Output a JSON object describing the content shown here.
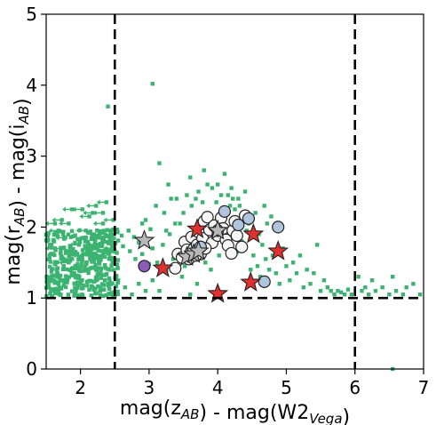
{
  "chart_data": {
    "type": "scatter",
    "xlabel": "mag(z_AB) - mag(W2_Vega)",
    "ylabel": "mag(r_AB) - mag(i_AB)",
    "xlim": [
      1.5,
      7
    ],
    "ylim": [
      0,
      5
    ],
    "x_ticks": [
      2,
      3,
      4,
      5,
      6,
      7
    ],
    "y_ticks": [
      0,
      1,
      2,
      3,
      4,
      5
    ],
    "grid": false,
    "legend": "none",
    "cuts": {
      "x": [
        2.5,
        6
      ],
      "y": [
        1
      ]
    },
    "colors": {
      "background_sources": "#3cb371",
      "open_circles": "#f5f5f5",
      "blue_circles": "#b0c4de",
      "purple_circles": "#8a5cb8",
      "red_stars": "#e03030",
      "gray_stars": "#b8b8b8"
    },
    "series": [
      {
        "marker": "square-small",
        "upper_limit": false,
        "points": [
          [
            1.92,
            1.78
          ],
          [
            2.05,
            1.85
          ],
          [
            2.1,
            1.72
          ],
          [
            2.2,
            1.83
          ],
          [
            2.3,
            1.74
          ],
          [
            2.38,
            1.87
          ],
          [
            2.47,
            1.76
          ],
          [
            2.55,
            1.81
          ],
          [
            2.6,
            1.88
          ],
          [
            2.62,
            1.73
          ],
          [
            2.7,
            1.95
          ],
          [
            2.72,
            1.66
          ],
          [
            2.78,
            1.86
          ],
          [
            2.8,
            1.55
          ],
          [
            2.85,
            1.78
          ],
          [
            2.9,
            1.62
          ],
          [
            2.95,
            2.1
          ],
          [
            3.0,
            1.48
          ],
          [
            3.02,
            1.97
          ],
          [
            3.05,
            1.7
          ],
          [
            3.1,
            2.3
          ],
          [
            3.12,
            1.5
          ],
          [
            3.15,
            2.9
          ],
          [
            3.2,
            1.75
          ],
          [
            3.22,
            2.2
          ],
          [
            3.25,
            1.38
          ],
          [
            3.28,
            2.6
          ],
          [
            3.3,
            1.9
          ],
          [
            3.32,
            2.4
          ],
          [
            3.35,
            1.55
          ],
          [
            3.38,
            2.05
          ],
          [
            3.4,
            2.4
          ],
          [
            3.42,
            1.65
          ],
          [
            3.45,
            2.05
          ],
          [
            3.48,
            1.3
          ],
          [
            3.5,
            2.2
          ],
          [
            3.52,
            1.45
          ],
          [
            3.55,
            2.45
          ],
          [
            3.58,
            1.85
          ],
          [
            3.6,
            2.7
          ],
          [
            3.62,
            2.3
          ],
          [
            3.65,
            1.6
          ],
          [
            3.68,
            2.4
          ],
          [
            3.7,
            1.2
          ],
          [
            3.72,
            2.5
          ],
          [
            3.75,
            1.7
          ],
          [
            3.78,
            2.35
          ],
          [
            3.8,
            2.8
          ],
          [
            3.82,
            1.5
          ],
          [
            3.85,
            2.6
          ],
          [
            3.88,
            2.15
          ],
          [
            3.9,
            1.4
          ],
          [
            3.92,
            2.55
          ],
          [
            3.95,
            1.85
          ],
          [
            3.98,
            2.35
          ],
          [
            4.0,
            2.6
          ],
          [
            4.02,
            1.6
          ],
          [
            4.05,
            2.45
          ],
          [
            4.08,
            2.2
          ],
          [
            4.1,
            2.75
          ],
          [
            4.12,
            1.95
          ],
          [
            4.15,
            2.45
          ],
          [
            4.18,
            2.3
          ],
          [
            4.2,
            2.55
          ],
          [
            4.22,
            2.4
          ],
          [
            4.25,
            2.25
          ],
          [
            4.28,
            1.65
          ],
          [
            4.3,
            2.4
          ],
          [
            4.32,
            2.3
          ],
          [
            4.35,
            1.8
          ],
          [
            4.38,
            2.15
          ],
          [
            4.4,
            2.5
          ],
          [
            4.42,
            1.95
          ],
          [
            4.45,
            2.05
          ],
          [
            4.48,
            1.4
          ],
          [
            4.5,
            2.15
          ],
          [
            4.52,
            1.6
          ],
          [
            4.55,
            2.2
          ],
          [
            4.58,
            1.45
          ],
          [
            4.6,
            1.9
          ],
          [
            4.62,
            1.3
          ],
          [
            4.65,
            1.75
          ],
          [
            4.68,
            2.3
          ],
          [
            4.7,
            1.55
          ],
          [
            4.72,
            2.05
          ],
          [
            4.75,
            1.4
          ],
          [
            4.78,
            2.15
          ],
          [
            4.8,
            1.6
          ],
          [
            4.85,
            1.35
          ],
          [
            4.88,
            2.0
          ],
          [
            4.9,
            1.2
          ],
          [
            4.95,
            1.7
          ],
          [
            5.0,
            1.45
          ],
          [
            5.05,
            1.25
          ],
          [
            5.1,
            1.5
          ],
          [
            5.15,
            1.35
          ],
          [
            5.2,
            1.6
          ],
          [
            5.25,
            1.15
          ],
          [
            5.3,
            1.4
          ],
          [
            5.35,
            1.2
          ],
          [
            5.4,
            1.35
          ],
          [
            5.45,
            1.75
          ],
          [
            5.5,
            1.1
          ],
          [
            5.55,
            1.25
          ],
          [
            5.6,
            1.15
          ],
          [
            5.65,
            1.1
          ],
          [
            5.7,
            1.05
          ],
          [
            5.75,
            1.1
          ],
          [
            5.8,
            1.08
          ],
          [
            5.85,
            1.05
          ],
          [
            5.9,
            1.12
          ],
          [
            5.95,
            1.05
          ],
          [
            6.05,
            1.3
          ],
          [
            6.1,
            1.1
          ],
          [
            6.15,
            1.15
          ],
          [
            6.2,
            1.05
          ],
          [
            6.25,
            1.25
          ],
          [
            6.3,
            1.1
          ],
          [
            6.4,
            1.15
          ],
          [
            6.5,
            1.05
          ],
          [
            6.55,
            1.3
          ],
          [
            6.6,
            1.1
          ],
          [
            6.7,
            1.05
          ],
          [
            6.75,
            1.15
          ],
          [
            6.85,
            1.2
          ],
          [
            6.95,
            1.05
          ],
          [
            2.55,
            1.25
          ],
          [
            2.65,
            1.15
          ],
          [
            2.75,
            1.05
          ],
          [
            2.85,
            1.2
          ],
          [
            2.95,
            1.1
          ],
          [
            3.05,
            1.25
          ],
          [
            3.15,
            1.1
          ],
          [
            3.05,
            4.02
          ],
          [
            2.4,
            3.7
          ],
          [
            6.55,
            0.0
          ],
          [
            3.25,
            1.95
          ],
          [
            2.9,
            2.05
          ],
          [
            3.6,
            1.05
          ]
        ]
      },
      {
        "marker": "square-small",
        "upper_limit": true,
        "points": [
          [
            1.85,
            1.55
          ],
          [
            1.9,
            1.65
          ],
          [
            1.95,
            1.75
          ],
          [
            2.0,
            1.6
          ],
          [
            2.05,
            1.95
          ],
          [
            2.1,
            2.15
          ],
          [
            2.15,
            1.7
          ],
          [
            2.2,
            2.3
          ],
          [
            2.25,
            1.85
          ],
          [
            2.3,
            2.05
          ],
          [
            2.35,
            2.35
          ],
          [
            2.4,
            1.95
          ],
          [
            1.8,
            2.05
          ],
          [
            1.75,
            1.85
          ],
          [
            1.7,
            2.1
          ],
          [
            1.65,
            1.95
          ],
          [
            1.6,
            2.05
          ],
          [
            1.7,
            1.7
          ],
          [
            1.85,
            2.25
          ],
          [
            2.0,
            2.25
          ],
          [
            2.15,
            2.2
          ],
          [
            2.3,
            2.2
          ],
          [
            2.45,
            2.1
          ],
          [
            1.6,
            1.7
          ],
          [
            1.8,
            1.5
          ],
          [
            2.05,
            1.4
          ],
          [
            2.25,
            1.55
          ],
          [
            2.45,
            1.7
          ]
        ]
      },
      {
        "marker": "circle",
        "name": "",
        "points": [
          [
            3.42,
            1.62
          ],
          [
            3.48,
            1.57
          ],
          [
            3.52,
            1.79
          ],
          [
            3.55,
            1.68
          ],
          [
            3.58,
            1.55
          ],
          [
            3.62,
            1.86
          ],
          [
            3.65,
            1.69
          ],
          [
            3.7,
            1.75
          ],
          [
            3.72,
            1.93
          ],
          [
            3.75,
            1.62
          ],
          [
            3.78,
            1.84
          ],
          [
            3.8,
            2.08
          ],
          [
            3.85,
            2.14
          ],
          [
            3.88,
            1.96
          ],
          [
            3.92,
            1.78
          ],
          [
            3.95,
            2.02
          ],
          [
            4.0,
            1.88
          ],
          [
            4.05,
            2.13
          ],
          [
            4.08,
            1.98
          ],
          [
            4.12,
            1.82
          ],
          [
            4.15,
            1.74
          ],
          [
            4.2,
            1.63
          ],
          [
            4.22,
            1.95
          ],
          [
            4.25,
            2.08
          ],
          [
            4.28,
            1.88
          ],
          [
            4.35,
            1.72
          ],
          [
            4.4,
            2.16
          ],
          [
            3.38,
            1.42
          ],
          [
            3.68,
            1.6
          ],
          [
            3.82,
            1.7
          ]
        ],
        "color_key": "open_circles"
      },
      {
        "marker": "circle",
        "name": "",
        "points": [
          [
            4.1,
            2.22
          ],
          [
            4.3,
            2.03
          ],
          [
            4.45,
            2.12
          ],
          [
            4.88,
            2.0
          ],
          [
            4.68,
            1.23
          ],
          [
            3.75,
            1.72
          ],
          [
            4.0,
            1.95
          ]
        ],
        "color_key": "blue_circles"
      },
      {
        "marker": "circle",
        "name": "",
        "points": [
          [
            2.93,
            1.45
          ]
        ],
        "color_key": "purple_circles"
      },
      {
        "marker": "star",
        "name": "",
        "points": [
          [
            3.2,
            1.42
          ],
          [
            3.7,
            1.97
          ],
          [
            4.0,
            1.06
          ],
          [
            4.48,
            1.22
          ],
          [
            4.52,
            1.9
          ],
          [
            4.88,
            1.66
          ]
        ],
        "color_key": "red_stars"
      },
      {
        "marker": "star",
        "name": "",
        "points": [
          [
            2.93,
            1.81
          ],
          [
            3.55,
            1.58
          ],
          [
            3.65,
            1.62
          ],
          [
            3.72,
            1.66
          ],
          [
            4.0,
            1.95
          ]
        ],
        "color_key": "gray_stars"
      }
    ]
  }
}
